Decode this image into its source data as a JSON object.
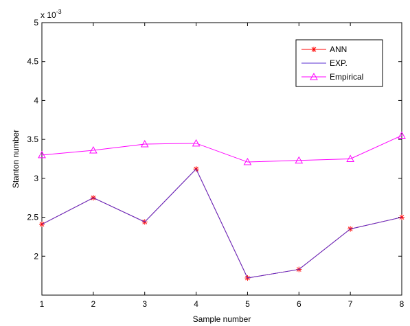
{
  "chart_data": {
    "type": "line",
    "title": "",
    "xlabel": "Sample number",
    "ylabel": "Stanton number",
    "exponent_label": "x 10",
    "exponent_power": "-3",
    "x": [
      1,
      2,
      3,
      4,
      5,
      6,
      7,
      8
    ],
    "xlim": [
      1,
      8
    ],
    "ylim": [
      1.5,
      5
    ],
    "xticks": [
      "1",
      "2",
      "3",
      "4",
      "5",
      "6",
      "7",
      "8"
    ],
    "yticks": [
      "2",
      "2.5",
      "3",
      "3.5",
      "4",
      "4.5",
      "5"
    ],
    "grid": false,
    "legend_position": "top-right",
    "series": [
      {
        "name": "ANN",
        "color": "#ff0000",
        "marker": "asterisk",
        "values": [
          2.41,
          2.75,
          2.44,
          3.12,
          1.72,
          1.83,
          2.35,
          2.5
        ]
      },
      {
        "name": "EXP.",
        "color": "#5a2fd0",
        "marker": "none",
        "values": [
          2.41,
          2.75,
          2.44,
          3.12,
          1.72,
          1.83,
          2.35,
          2.5
        ]
      },
      {
        "name": "Empirical",
        "color": "#ff00ff",
        "marker": "triangle",
        "values": [
          3.3,
          3.36,
          3.44,
          3.45,
          3.21,
          3.23,
          3.25,
          3.55
        ]
      }
    ]
  }
}
